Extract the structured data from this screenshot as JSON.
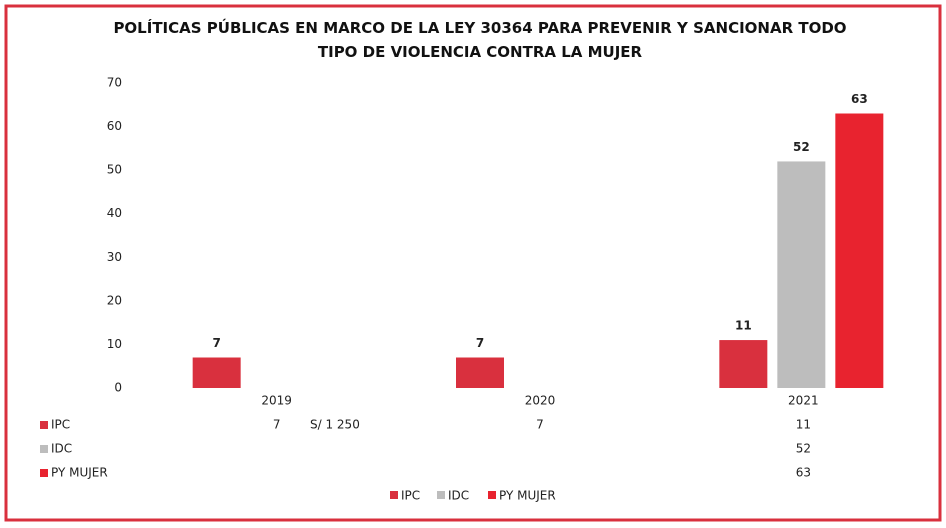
{
  "chart_data": {
    "type": "bar",
    "title": "POLÍTICAS PÚBLICAS EN MARCO DE LA LEY 30364 PARA PREVENIR Y SANCIONAR TODO TIPO DE VIOLENCIA CONTRA LA MUJER",
    "categories": [
      "2019",
      "2020",
      "2021"
    ],
    "series": [
      {
        "name": "IPC",
        "color": "#d9303e",
        "values": [
          7,
          7,
          11
        ]
      },
      {
        "name": "IDC",
        "color": "#bdbdbd",
        "values": [
          null,
          null,
          52
        ]
      },
      {
        "name": "PY MUJER",
        "color": "#e8232f",
        "values": [
          null,
          null,
          63
        ]
      }
    ],
    "annotation": "S/ 1 250",
    "ylim": [
      0,
      70
    ],
    "yticks": [
      0,
      10,
      20,
      30,
      40,
      50,
      60,
      70
    ],
    "grid": false,
    "legend": "bottom"
  }
}
